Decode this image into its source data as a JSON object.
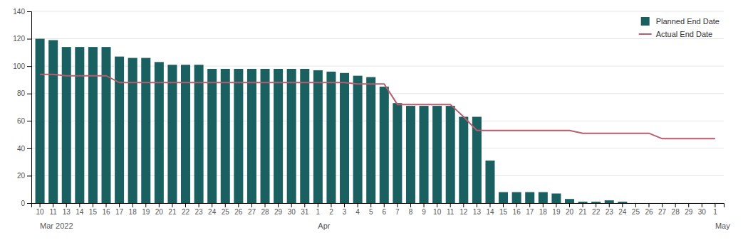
{
  "chart_data": {
    "type": "bar",
    "categories": [
      "10",
      "11",
      "13",
      "14",
      "15",
      "16",
      "17",
      "18",
      "19",
      "20",
      "21",
      "22",
      "23",
      "24",
      "25",
      "26",
      "27",
      "28",
      "29",
      "30",
      "31",
      "1",
      "2",
      "3",
      "4",
      "5",
      "6",
      "7",
      "8",
      "9",
      "10",
      "11",
      "12",
      "13",
      "14",
      "15",
      "16",
      "17",
      "18",
      "19",
      "20",
      "21",
      "22",
      "23",
      "24",
      "25",
      "26",
      "27",
      "28",
      "29",
      "30",
      "1"
    ],
    "series": [
      {
        "name": "Planned End Date",
        "type": "bar",
        "color": "#1a6060",
        "values": [
          120,
          119,
          114,
          114,
          114,
          114,
          107,
          106,
          106,
          103,
          101,
          101,
          101,
          98,
          98,
          98,
          98,
          98,
          98,
          98,
          98,
          97,
          96,
          95,
          93,
          92,
          85,
          73,
          71,
          71,
          71,
          71,
          63,
          63,
          31,
          8,
          8,
          8,
          8,
          7,
          3,
          1,
          1,
          2,
          1,
          0,
          0,
          0,
          0,
          0,
          0,
          0
        ]
      },
      {
        "name": "Actual End Date",
        "type": "line",
        "color": "#b85c6e",
        "values": [
          94,
          94,
          93,
          93,
          93,
          93,
          88,
          88,
          88,
          88,
          88,
          88,
          88,
          88,
          88,
          88,
          88,
          88,
          88,
          88,
          88,
          88,
          88,
          88,
          87,
          87,
          87,
          72,
          72,
          72,
          72,
          72,
          63,
          53,
          53,
          53,
          53,
          53,
          53,
          53,
          53,
          51,
          51,
          51,
          51,
          51,
          51,
          47,
          47,
          47,
          47,
          47
        ]
      }
    ],
    "annotations": [
      {
        "text": "Mar 2022",
        "x": 0
      },
      {
        "text": "Apr",
        "x": 21
      },
      {
        "text": "May",
        "x": 51
      }
    ],
    "ylim": [
      0,
      140
    ],
    "yticks": [
      0,
      20,
      40,
      60,
      80,
      100,
      120,
      140
    ],
    "grid": true,
    "legend": "upper right"
  }
}
